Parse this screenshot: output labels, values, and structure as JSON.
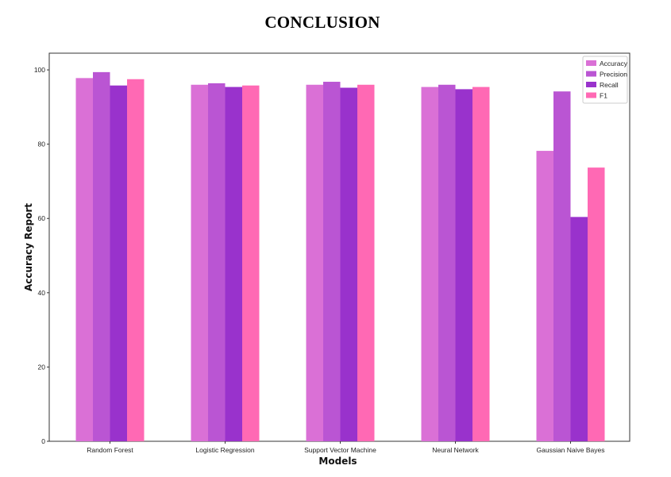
{
  "page": {
    "title": "CONCLUSION"
  },
  "chart_data": {
    "type": "bar",
    "categories": [
      "Random Forest",
      "Logistic Regression",
      "Support Vector Machine",
      "Neural Network",
      "Gaussian Naive Bayes"
    ],
    "series": [
      {
        "name": "Accuracy",
        "color": "#DA70D6",
        "values": [
          97.8,
          96.0,
          96.0,
          95.4,
          78.2
        ]
      },
      {
        "name": "Precision",
        "color": "#BA55D3",
        "values": [
          99.4,
          96.4,
          96.8,
          96.0,
          94.2
        ]
      },
      {
        "name": "Recall",
        "color": "#9932CC",
        "values": [
          95.8,
          95.4,
          95.2,
          94.8,
          60.4
        ]
      },
      {
        "name": "F1",
        "color": "#FF69B4",
        "values": [
          97.5,
          95.8,
          96.0,
          95.4,
          73.7
        ]
      }
    ],
    "xlabel": "Models",
    "ylabel": "Accuracy Report",
    "ylim": [
      0,
      104.5
    ],
    "yticks": [
      0,
      20,
      40,
      60,
      80,
      100
    ],
    "grid": false,
    "legend_position": "top-right"
  }
}
